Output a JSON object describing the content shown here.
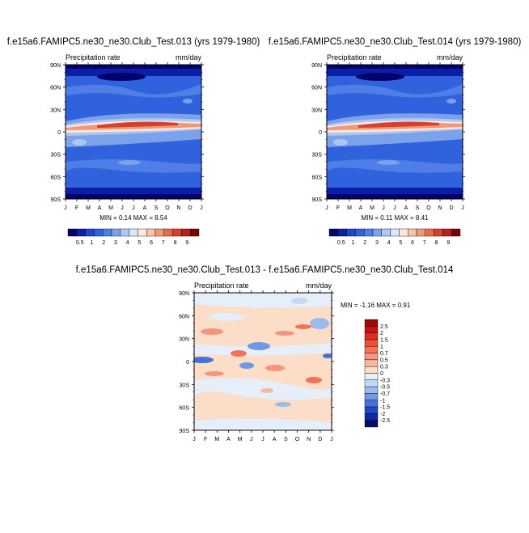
{
  "chart_data": [
    {
      "type": "heatmap",
      "title": "f.e15a6.FAMIPC5.ne30_ne30.Club_Test.013 (yrs 1979-1980)",
      "left_label": "Precipitation rate",
      "right_label": "mm/day",
      "x_ticks": [
        "J",
        "F",
        "M",
        "A",
        "M",
        "J",
        "J",
        "A",
        "S",
        "O",
        "N",
        "D",
        "J"
      ],
      "y_ticks": [
        "90N",
        "60N",
        "30N",
        "0",
        "30S",
        "60S",
        "90S"
      ],
      "y_values": [
        90,
        60,
        30,
        0,
        -30,
        -60,
        -90
      ],
      "stats": "MIN =  0.14 MAX =   8.54",
      "colorbar_labels": [
        "0.5",
        "1",
        "2",
        "3",
        "4",
        "5",
        "6",
        "7",
        "8",
        "9"
      ],
      "colorbar_colors": [
        "#03036b",
        "#0a1ea8",
        "#1f45cc",
        "#2f62dc",
        "#4f7fe6",
        "#7da2ec",
        "#afc6f2",
        "#d9e6f9",
        "#fde9dc",
        "#f8c4a8",
        "#f19878",
        "#e86a4e",
        "#d6402c",
        "#b5201a",
        "#7a0404"
      ]
    },
    {
      "type": "heatmap",
      "title": "f.e15a6.FAMIPC5.ne30_ne30.Club_Test.014 (yrs 1979-1980)",
      "left_label": "Precipitation rate",
      "right_label": "mm/day",
      "x_ticks": [
        "J",
        "F",
        "M",
        "A",
        "M",
        "J",
        "J",
        "A",
        "S",
        "O",
        "N",
        "D",
        "J"
      ],
      "y_ticks": [
        "90N",
        "60N",
        "30N",
        "0",
        "30S",
        "60S",
        "90S"
      ],
      "y_values": [
        90,
        60,
        30,
        0,
        -30,
        -60,
        -90
      ],
      "stats": "MIN =  0.11 MAX =   8.41",
      "colorbar_labels": [
        "0.5",
        "1",
        "2",
        "3",
        "4",
        "5",
        "6",
        "7",
        "8",
        "9"
      ],
      "colorbar_colors": [
        "#03036b",
        "#0a1ea8",
        "#1f45cc",
        "#2f62dc",
        "#4f7fe6",
        "#7da2ec",
        "#afc6f2",
        "#d9e6f9",
        "#fde9dc",
        "#f8c4a8",
        "#f19878",
        "#e86a4e",
        "#d6402c",
        "#b5201a",
        "#7a0404"
      ]
    },
    {
      "type": "heatmap",
      "title": "f.e15a6.FAMIPC5.ne30_ne30.Club_Test.013 - f.e15a6.FAMIPC5.ne30_ne30.Club_Test.014",
      "left_label": "Precipitation rate",
      "right_label": "mm/day",
      "x_ticks": [
        "J",
        "F",
        "M",
        "A",
        "M",
        "J",
        "J",
        "A",
        "S",
        "O",
        "N",
        "D",
        "J"
      ],
      "y_ticks": [
        "90N",
        "60N",
        "30N",
        "0",
        "30S",
        "60S",
        "90S"
      ],
      "y_values": [
        90,
        60,
        30,
        0,
        -30,
        -60,
        -90
      ],
      "stats": "MIN =  -1.16 MAX =   0.91",
      "colorbar_labels": [
        "2.5",
        "2",
        "1.5",
        "1",
        "0.7",
        "0.5",
        "0.3",
        "0",
        "-0.3",
        "-0.5",
        "-0.7",
        "-1",
        "-1.5",
        "-2",
        "-2.5"
      ],
      "colorbar_colors": [
        "#a00808",
        "#c41414",
        "#dc2d1e",
        "#ee4f32",
        "#f27356",
        "#f4957c",
        "#f7b7a0",
        "#fbddc8",
        "#e6eef9",
        "#c4d8f3",
        "#9bbbee",
        "#6f98e6",
        "#4472da",
        "#2249c4",
        "#0f2aa0",
        "#040c66"
      ]
    }
  ]
}
